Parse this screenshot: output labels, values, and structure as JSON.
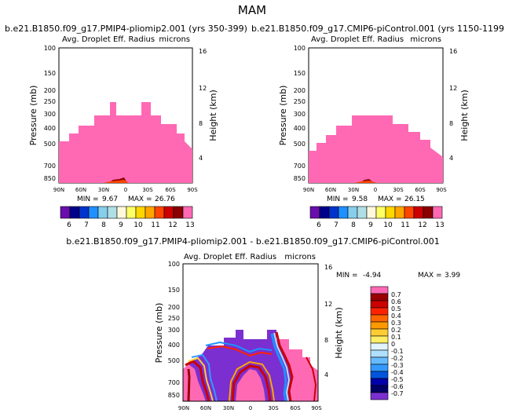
{
  "figure_title": "MAM",
  "colors": {
    "pink": "#ff69b4",
    "dark_red": "#990000",
    "background": "#ffffff"
  },
  "chart_data": [
    {
      "type": "contour",
      "title": "b.e21.B1850.f09_g17.PMIP4-pliomip2.001 (yrs 350-399)",
      "subtitle_left": "Avg. Droplet Eff. Radius",
      "subtitle_right": "microns",
      "ylabel": "Pressure (mb)",
      "ylabel_right": "Height (km)",
      "x_ticks": [
        "90N",
        "60N",
        "30N",
        "0",
        "30S",
        "60S",
        "90S"
      ],
      "y_ticks": [
        "100",
        "150",
        "200",
        "250",
        "300",
        "400",
        "500",
        "700",
        "850"
      ],
      "y_ticks_right": [
        "16",
        "12",
        "8",
        "4"
      ],
      "min_label": "MIN =",
      "min_value": "9.67",
      "max_label": "MAX =",
      "max_value": "26.76",
      "colorbar_labels": [
        "6",
        "7",
        "8",
        "9",
        "10",
        "11",
        "12",
        "13"
      ],
      "colorbar_colors": [
        "#6a0dad",
        "#00008b",
        "#0033cc",
        "#1e90ff",
        "#87ceeb",
        "#b0e0e6",
        "#fff8dc",
        "#ffff66",
        "#ffd700",
        "#ffa500",
        "#ff4500",
        "#cc0000",
        "#8b0000",
        "#ff69b4"
      ]
    },
    {
      "type": "contour",
      "title": "b.e21.B1850.f09_g17.CMIP6-piControl.001 (yrs 1150-1199)",
      "subtitle_left": "Avg. Droplet Eff. Radius",
      "subtitle_right": "microns",
      "ylabel": "Pressure (mb)",
      "ylabel_right": "Height (km)",
      "x_ticks": [
        "90N",
        "60N",
        "30N",
        "0",
        "30S",
        "60S",
        "90S"
      ],
      "y_ticks": [
        "100",
        "150",
        "200",
        "250",
        "300",
        "400",
        "500",
        "700",
        "850"
      ],
      "y_ticks_right": [
        "16",
        "12",
        "8",
        "4"
      ],
      "min_label": "MIN =",
      "min_value": "9.58",
      "max_label": "MAX =",
      "max_value": "26.15",
      "colorbar_labels": [
        "6",
        "7",
        "8",
        "9",
        "10",
        "11",
        "12",
        "13"
      ],
      "colorbar_colors": [
        "#6a0dad",
        "#00008b",
        "#0033cc",
        "#1e90ff",
        "#87ceeb",
        "#b0e0e6",
        "#fff8dc",
        "#ffff66",
        "#ffd700",
        "#ffa500",
        "#ff4500",
        "#cc0000",
        "#8b0000",
        "#ff69b4"
      ]
    },
    {
      "type": "contour",
      "title": "b.e21.B1850.f09_g17.PMIP4-pliomip2.001 - b.e21.B1850.f09_g17.CMIP6-piControl.001",
      "subtitle_left": "Avg. Droplet Eff. Radius",
      "subtitle_right": "microns",
      "ylabel": "Pressure (mb)",
      "ylabel_right": "Height (km)",
      "x_ticks": [
        "90N",
        "60N",
        "30N",
        "0",
        "30S",
        "60S",
        "90S"
      ],
      "y_ticks": [
        "100",
        "150",
        "200",
        "250",
        "300",
        "400",
        "500",
        "700",
        "850"
      ],
      "y_ticks_right": [
        "16",
        "12",
        "8",
        "4"
      ],
      "min_label": "MIN =",
      "min_value": "-4.94",
      "max_label": "MAX =",
      "max_value": "3.99",
      "colorbar_labels": [
        "0.7",
        "0.6",
        "0.5",
        "0.4",
        "0.3",
        "0.2",
        "0.1",
        "0",
        "-0.1",
        "-0.2",
        "-0.3",
        "-0.4",
        "-0.5",
        "-0.6",
        "-0.7"
      ],
      "colorbar_colors": [
        "#ff69b4",
        "#990000",
        "#cc0000",
        "#ff2200",
        "#ff6600",
        "#ff9900",
        "#ffcc33",
        "#ffee66",
        "#e0f4ff",
        "#b0e0ff",
        "#66bbff",
        "#3399ff",
        "#0055dd",
        "#0000aa",
        "#000066",
        "#7b2fd0"
      ]
    }
  ]
}
